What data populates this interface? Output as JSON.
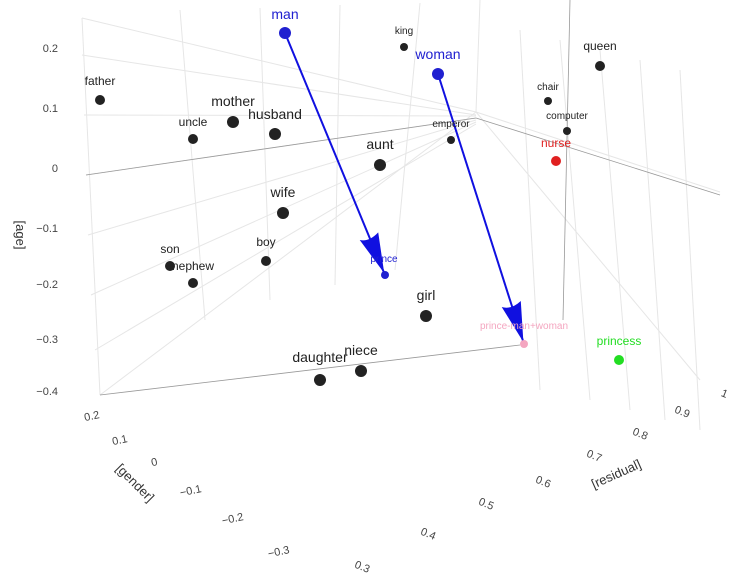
{
  "chart_data": {
    "type": "scatter3d",
    "axes": {
      "age": {
        "label": "[age]",
        "ticks": [
          "0.2",
          "0.1",
          "0",
          "−0.1",
          "−0.2",
          "−0.3",
          "−0.4"
        ]
      },
      "gender": {
        "label": "[gender]",
        "ticks": [
          "0.2",
          "0.1",
          "0",
          "−0.1",
          "−0.2",
          "−0.3"
        ]
      },
      "residual": {
        "label": "[residual]",
        "ticks": [
          "0.3",
          "0.4",
          "0.5",
          "0.6",
          "0.7",
          "0.8",
          "0.9",
          "1"
        ]
      }
    },
    "grid": true,
    "words": [
      {
        "text": "man",
        "color": "#2020d0",
        "size": "big"
      },
      {
        "text": "king",
        "color": "#222222",
        "size": "small"
      },
      {
        "text": "woman",
        "color": "#2020d0",
        "size": "big"
      },
      {
        "text": "queen",
        "color": "#222222",
        "size": "medium"
      },
      {
        "text": "father",
        "color": "#222222",
        "size": "medium"
      },
      {
        "text": "mother",
        "color": "#222222",
        "size": "big"
      },
      {
        "text": "husband",
        "color": "#222222",
        "size": "big"
      },
      {
        "text": "uncle",
        "color": "#222222",
        "size": "medium"
      },
      {
        "text": "chair",
        "color": "#222222",
        "size": "small"
      },
      {
        "text": "computer",
        "color": "#222222",
        "size": "small"
      },
      {
        "text": "emperor",
        "color": "#222222",
        "size": "small"
      },
      {
        "text": "nurse",
        "color": "#e02020",
        "size": "medium"
      },
      {
        "text": "aunt",
        "color": "#222222",
        "size": "big"
      },
      {
        "text": "wife",
        "color": "#222222",
        "size": "big"
      },
      {
        "text": "son",
        "color": "#222222",
        "size": "medium"
      },
      {
        "text": "nephew",
        "color": "#222222",
        "size": "medium"
      },
      {
        "text": "boy",
        "color": "#222222",
        "size": "medium"
      },
      {
        "text": "prince",
        "color": "#2020d0",
        "size": "small"
      },
      {
        "text": "girl",
        "color": "#222222",
        "size": "big"
      },
      {
        "text": "prince-man+woman",
        "color": "#f4a6c0",
        "size": "small"
      },
      {
        "text": "princess",
        "color": "#22dd22",
        "size": "medium"
      },
      {
        "text": "daughter",
        "color": "#222222",
        "size": "big"
      },
      {
        "text": "niece",
        "color": "#222222",
        "size": "big"
      }
    ],
    "vectors": [
      {
        "from": "man",
        "to": "prince",
        "color": "#1010e0"
      },
      {
        "from": "woman",
        "to": "prince-man+woman",
        "color": "#1010e0"
      }
    ]
  }
}
